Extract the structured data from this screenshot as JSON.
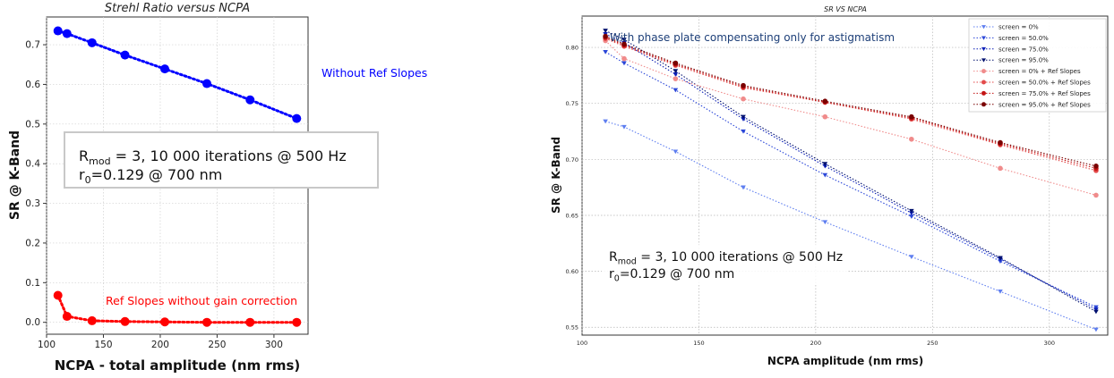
{
  "chart_data": [
    {
      "type": "scatter",
      "title": "Strehl Ratio versus NCPA",
      "xlabel": "NCPA - total amplitude (nm rms)",
      "ylabel": "SR @ K-Band",
      "xlim": [
        100,
        330
      ],
      "ylim": [
        -0.03,
        0.77
      ],
      "xticks": [
        100,
        150,
        200,
        250,
        300
      ],
      "yticks": [
        0.0,
        0.1,
        0.2,
        0.3,
        0.4,
        0.5,
        0.6,
        0.7
      ],
      "grid": true,
      "series": [
        {
          "name": "Without Ref Slopes",
          "color": "#0000ff",
          "x": [
            110,
            118,
            140,
            169,
            204,
            241,
            279,
            320
          ],
          "y": [
            0.735,
            0.728,
            0.705,
            0.674,
            0.639,
            0.602,
            0.561,
            0.514
          ]
        },
        {
          "name": "Ref Slopes without gain correction",
          "color": "#ff0000",
          "x": [
            110,
            118,
            140,
            169,
            204,
            241,
            279,
            320
          ],
          "y": [
            0.068,
            0.015,
            0.004,
            0.002,
            0.001,
            0.0,
            0.0,
            0.0
          ]
        }
      ],
      "annotation": {
        "line1_main": "R",
        "line1_sub": "mod",
        "line1_rest": " = 3, 10 000 iterations @ 500 Hz",
        "line2_main": "r",
        "line2_sub": "0",
        "line2_rest": "=0.129 @ 700 nm"
      }
    },
    {
      "type": "line",
      "title": "SR VS NCPA",
      "xlabel": "NCPA amplitude (nm rms)",
      "ylabel": "SR @ K-Band",
      "xlim": [
        100,
        325
      ],
      "ylim": [
        0.543,
        0.828
      ],
      "xticks": [
        100,
        150,
        200,
        250,
        300
      ],
      "yticks": [
        0.55,
        0.6,
        0.65,
        0.7,
        0.75,
        0.8
      ],
      "ytick_labels": [
        "0.55",
        "0.60",
        "0.65",
        "0.70",
        "0.75",
        "0.80"
      ],
      "grid": true,
      "legend_position": "top-right",
      "note": "With phase plate compensating only for astigmatism",
      "x": [
        110,
        118,
        140,
        169,
        204,
        241,
        279,
        320
      ],
      "series": [
        {
          "name": "screen = 0%",
          "color": "#5e7ef0",
          "marker": "triangle",
          "values": [
            0.734,
            0.729,
            0.707,
            0.675,
            0.644,
            0.613,
            0.582,
            0.548
          ]
        },
        {
          "name": "screen = 50.0%",
          "color": "#2a46d8",
          "marker": "triangle",
          "values": [
            0.796,
            0.786,
            0.762,
            0.725,
            0.686,
            0.649,
            0.609,
            0.568
          ]
        },
        {
          "name": "screen = 75.0%",
          "color": "#0c1fb8",
          "marker": "triangle",
          "values": [
            0.812,
            0.804,
            0.776,
            0.736,
            0.694,
            0.652,
            0.611,
            0.566
          ]
        },
        {
          "name": "screen = 95.0%",
          "color": "#00106e",
          "marker": "triangle",
          "values": [
            0.815,
            0.807,
            0.779,
            0.738,
            0.696,
            0.654,
            0.612,
            0.564
          ]
        },
        {
          "name": "screen = 0% + Ref Slopes",
          "color": "#f08b8b",
          "marker": "circle",
          "values": [
            0.806,
            0.79,
            0.772,
            0.754,
            0.738,
            0.718,
            0.692,
            0.668
          ]
        },
        {
          "name": "screen = 50.0% + Ref Slopes",
          "color": "#e34a4a",
          "marker": "circle",
          "values": [
            0.808,
            0.801,
            0.784,
            0.764,
            0.751,
            0.736,
            0.713,
            0.69
          ]
        },
        {
          "name": "screen = 75.0% + Ref Slopes",
          "color": "#c41414",
          "marker": "circle",
          "values": [
            0.809,
            0.802,
            0.785,
            0.765,
            0.751,
            0.737,
            0.714,
            0.692
          ]
        },
        {
          "name": "screen = 95.0% + Ref Slopes",
          "color": "#7a0000",
          "marker": "circle",
          "values": [
            0.81,
            0.803,
            0.786,
            0.766,
            0.752,
            0.738,
            0.715,
            0.694
          ]
        }
      ],
      "annotation": {
        "line1_main": "R",
        "line1_sub": "mod",
        "line1_rest": " = 3, 10 000 iterations @ 500 Hz",
        "line2_main": "r",
        "line2_sub": "0",
        "line2_rest": "=0.129 @ 700 nm"
      }
    }
  ]
}
